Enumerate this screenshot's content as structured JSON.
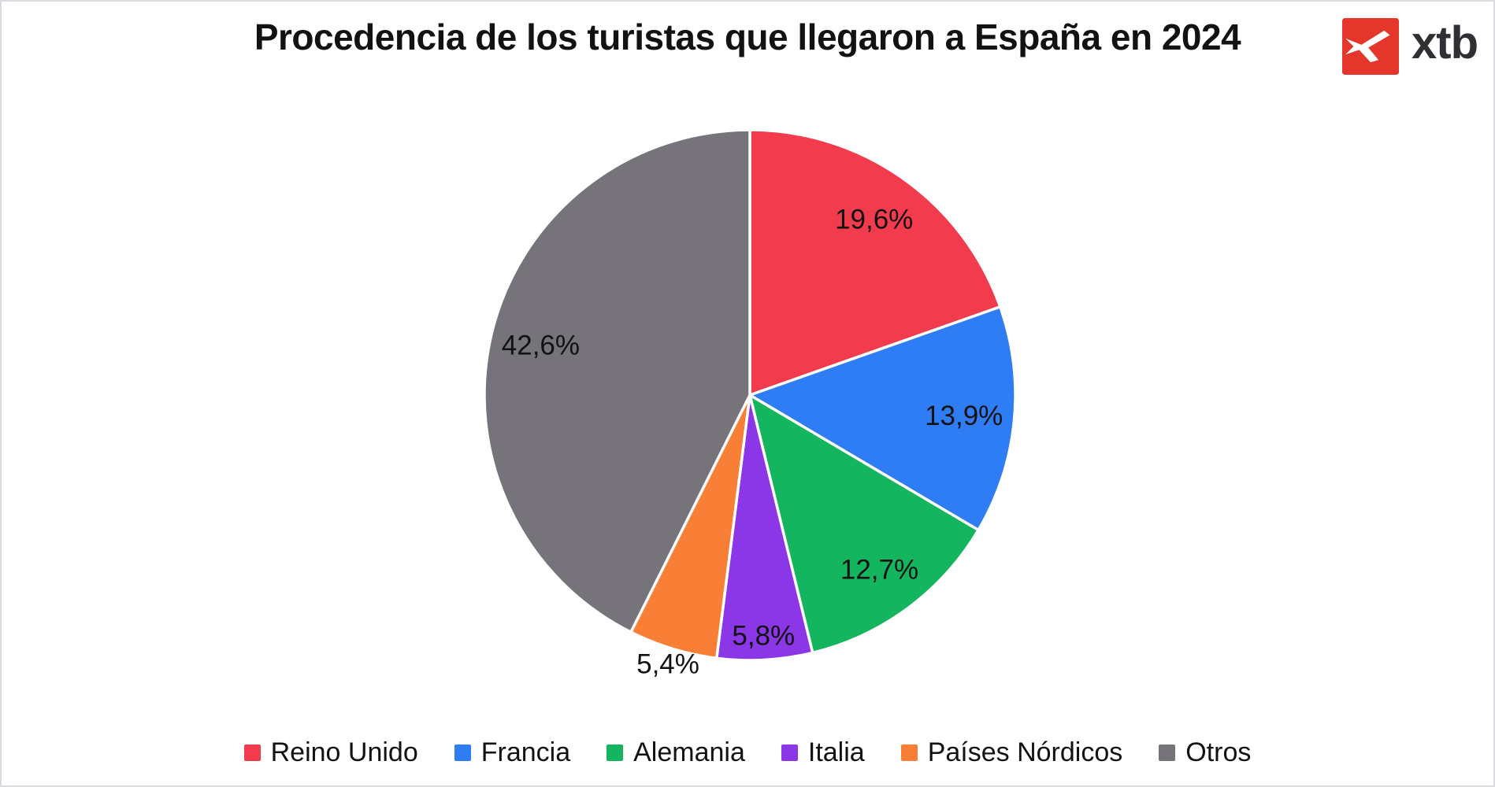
{
  "header": {
    "title": "Procedencia de los turistas que llegaron a España en 2024",
    "logo_text": "xtb"
  },
  "colors": {
    "logo_red": "#E5362C",
    "logo_text": "#2F2F34",
    "canvas_border": "#DADAE0",
    "label_text": "#121212"
  },
  "chart_data": {
    "type": "pie",
    "title": "Procedencia de los turistas que llegaron a España en 2024",
    "categories": [
      "Reino Unido",
      "Francia",
      "Alemania",
      "Italia",
      "Países Nórdicos",
      "Otros"
    ],
    "values": [
      19.6,
      13.9,
      12.7,
      5.8,
      5.4,
      42.6
    ],
    "labels": [
      "19,6%",
      "13,9%",
      "12,7%",
      "5,8%",
      "5,4%",
      "42,6%"
    ],
    "colors": [
      "#F23B4D",
      "#2E7DF5",
      "#13B55F",
      "#8B36E7",
      "#F97F37",
      "#76737A"
    ],
    "start_angle_deg": 0,
    "direction": "clockwise",
    "slice_separator_color": "#FFFFFF",
    "slice_separator_width": 3.5,
    "legend_position": "bottom",
    "label_radius_factors": [
      0.81,
      0.81,
      0.82,
      0.91,
      1.06,
      0.81
    ]
  }
}
